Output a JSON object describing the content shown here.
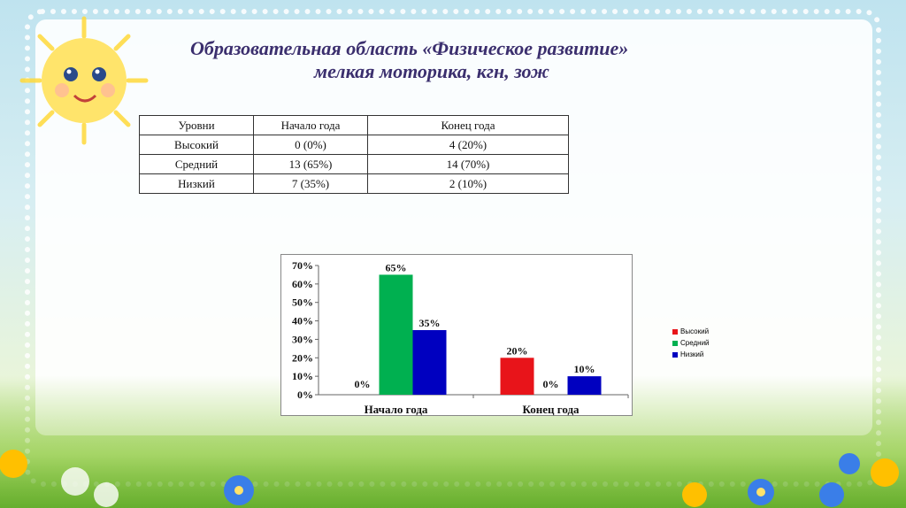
{
  "title": {
    "line1": "Образовательная область «Физическое развитие»",
    "line2": "мелкая моторика, кгн, зож"
  },
  "table": {
    "headers": [
      "Уровни",
      "Начало года",
      "Конец года"
    ],
    "rows": [
      [
        "Высокий",
        "0 (0%)",
        "4 (20%)"
      ],
      [
        "Средний",
        "13 (65%)",
        "14 (70%)"
      ],
      [
        "Низкий",
        "7  (35%)",
        "2 (10%)"
      ]
    ]
  },
  "chart_data": {
    "type": "bar",
    "categories": [
      "Начало года",
      "Конец года"
    ],
    "series": [
      {
        "name": "Высокий",
        "values": [
          0,
          20
        ],
        "labels": [
          "0%",
          "20%"
        ],
        "color": "#e8141a"
      },
      {
        "name": "Средний",
        "values": [
          65,
          null
        ],
        "labels": [
          "65%",
          ""
        ],
        "color": "#00b050"
      },
      {
        "name": "Низкий",
        "values": [
          35,
          10
        ],
        "labels": [
          "35%",
          "10%"
        ],
        "color": "#0000c0"
      }
    ],
    "extra_labels": [
      {
        "category": "Конец года",
        "text": "0%"
      }
    ],
    "yticks": [
      "0%",
      "10%",
      "20%",
      "30%",
      "40%",
      "50%",
      "60%",
      "70%"
    ],
    "ylim": [
      0,
      70
    ],
    "legend": "right",
    "grid": false
  }
}
